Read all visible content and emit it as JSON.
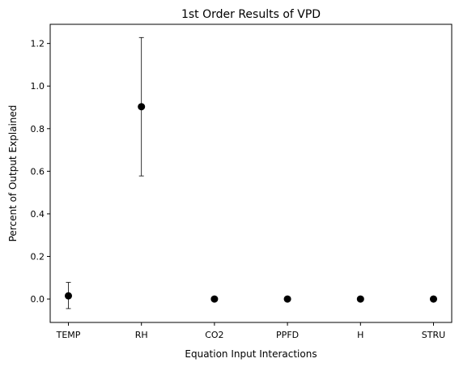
{
  "chart_data": {
    "type": "scatter",
    "title": "1st Order Results of VPD",
    "xlabel": "Equation Input Interactions",
    "ylabel": "Percent of Output Explained",
    "categories": [
      "TEMP",
      "RH",
      "CO2",
      "PPFD",
      "H",
      "STRU"
    ],
    "values": [
      0.015,
      0.903,
      0.0,
      0.0,
      0.0,
      0.0
    ],
    "error_low": [
      -0.045,
      0.578,
      0.0,
      0.0,
      0.0,
      0.0
    ],
    "error_high": [
      0.078,
      1.228,
      0.0,
      0.0,
      0.0,
      0.0
    ],
    "ylim": [
      -0.11,
      1.29
    ],
    "yticks": [
      0.0,
      0.2,
      0.4,
      0.6,
      0.8,
      1.0,
      1.2
    ],
    "ytick_labels": [
      "0.0",
      "0.2",
      "0.4",
      "0.6",
      "0.8",
      "1.0",
      "1.2"
    ],
    "grid": false,
    "marker_color": "#000000"
  }
}
